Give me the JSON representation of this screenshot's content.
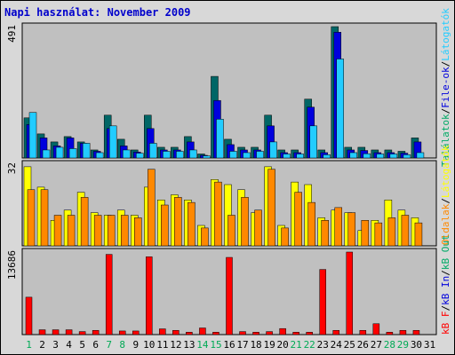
{
  "title": "Napi használat: November 2009",
  "colors": {
    "panel_bg": "#c0c0c0",
    "hits": "#006666",
    "files": "#0000dd",
    "pages": "#22ccff",
    "visits": "#ffff00",
    "sites": "#ff8800",
    "kbytes": "#ff0000",
    "title": "#0000cc",
    "weekend_day": "#00aa55"
  },
  "right_legend_top": {
    "parts": [
      {
        "text": "Találatok",
        "color": "#00aa66"
      },
      {
        "text": "/",
        "color": "#000000"
      },
      {
        "text": "File-ok",
        "color": "#0000dd"
      },
      {
        "text": "/",
        "color": "#000000"
      },
      {
        "text": "Látogatók",
        "color": "#22ccff"
      }
    ]
  },
  "right_legend_middle": {
    "parts": [
      {
        "text": "Oldalak",
        "color": "#ff8800"
      },
      {
        "text": "/",
        "color": "#000000"
      },
      {
        "text": "Látogatók",
        "color": "#ffff00"
      }
    ]
  },
  "right_legend_bottom": {
    "parts": [
      {
        "text": "kB F",
        "color": "#ff0000"
      },
      {
        "text": "/",
        "color": "#000000"
      },
      {
        "text": "kB In",
        "color": "#0000dd"
      },
      {
        "text": "/",
        "color": "#000000"
      },
      {
        "text": "kB Out",
        "color": "#00aa66"
      }
    ]
  },
  "chart_data": [
    {
      "type": "bar",
      "panel": "top",
      "ymax_label": "491",
      "ylim": [
        0,
        491
      ],
      "categories": [
        "1",
        "2",
        "3",
        "4",
        "5",
        "6",
        "7",
        "8",
        "9",
        "10",
        "11",
        "12",
        "13",
        "14",
        "15",
        "16",
        "17",
        "18",
        "19",
        "20",
        "21",
        "22",
        "23",
        "24",
        "25",
        "26",
        "27",
        "28",
        "29",
        "30",
        "31"
      ],
      "series": [
        {
          "name": "Találatok",
          "values": [
            150,
            90,
            60,
            80,
            60,
            30,
            160,
            70,
            30,
            160,
            40,
            40,
            80,
            15,
            305,
            70,
            40,
            40,
            160,
            30,
            30,
            220,
            30,
            491,
            40,
            40,
            30,
            30,
            25,
            75,
            0
          ]
        },
        {
          "name": "File-ok",
          "values": [
            125,
            75,
            45,
            75,
            55,
            25,
            110,
            45,
            22,
            110,
            30,
            30,
            60,
            10,
            215,
            50,
            30,
            30,
            120,
            20,
            20,
            190,
            20,
            470,
            30,
            28,
            20,
            20,
            18,
            60,
            0
          ]
        },
        {
          "name": "Látogatók",
          "values": [
            170,
            30,
            40,
            35,
            55,
            20,
            120,
            30,
            18,
            55,
            25,
            25,
            30,
            8,
            145,
            25,
            20,
            25,
            60,
            15,
            15,
            120,
            12,
            370,
            20,
            16,
            15,
            15,
            12,
            20,
            0
          ]
        }
      ]
    },
    {
      "type": "bar",
      "panel": "middle",
      "ymax_label": "32",
      "ylim": [
        0,
        32
      ],
      "categories": [
        "1",
        "2",
        "3",
        "4",
        "5",
        "6",
        "7",
        "8",
        "9",
        "10",
        "11",
        "12",
        "13",
        "14",
        "15",
        "16",
        "17",
        "18",
        "19",
        "20",
        "21",
        "22",
        "23",
        "24",
        "25",
        "26",
        "27",
        "28",
        "29",
        "30",
        "31"
      ],
      "series": [
        {
          "name": "Látogatók",
          "values": [
            31,
            23,
            10,
            14,
            21,
            13,
            12,
            14,
            12,
            23,
            18,
            20,
            18,
            8,
            26,
            24,
            22,
            13,
            31,
            8,
            25,
            24,
            11,
            14,
            13,
            6,
            10,
            18,
            14,
            11,
            0
          ]
        },
        {
          "name": "Oldalak",
          "values": [
            22,
            22,
            12,
            12,
            19,
            12,
            12,
            12,
            11,
            30,
            16,
            19,
            17,
            7,
            25,
            12,
            19,
            14,
            30,
            7,
            21,
            17,
            10,
            15,
            13,
            10,
            9,
            11,
            12,
            9,
            0
          ]
        }
      ]
    },
    {
      "type": "bar",
      "panel": "bottom",
      "ymax_label": "13686",
      "ylim": [
        0,
        13686
      ],
      "categories": [
        "1",
        "2",
        "3",
        "4",
        "5",
        "6",
        "7",
        "8",
        "9",
        "10",
        "11",
        "12",
        "13",
        "14",
        "15",
        "16",
        "17",
        "18",
        "19",
        "20",
        "21",
        "22",
        "23",
        "24",
        "25",
        "26",
        "27",
        "28",
        "29",
        "30",
        "31"
      ],
      "series": [
        {
          "name": "kB F",
          "values": [
            6200,
            800,
            800,
            800,
            500,
            700,
            13300,
            600,
            600,
            12900,
            950,
            700,
            400,
            1100,
            400,
            12800,
            500,
            400,
            500,
            1000,
            400,
            400,
            10800,
            700,
            13686,
            700,
            1800,
            400,
            700,
            700,
            0
          ]
        }
      ]
    }
  ],
  "x_axis": {
    "labels": [
      "1",
      "2",
      "3",
      "4",
      "5",
      "6",
      "7",
      "8",
      "9",
      "10",
      "11",
      "12",
      "13",
      "14",
      "15",
      "16",
      "17",
      "18",
      "19",
      "20",
      "21",
      "22",
      "23",
      "24",
      "25",
      "26",
      "27",
      "28",
      "29",
      "30",
      "31"
    ],
    "weekend": [
      1,
      7,
      8,
      14,
      15,
      21,
      22,
      28,
      29
    ]
  }
}
